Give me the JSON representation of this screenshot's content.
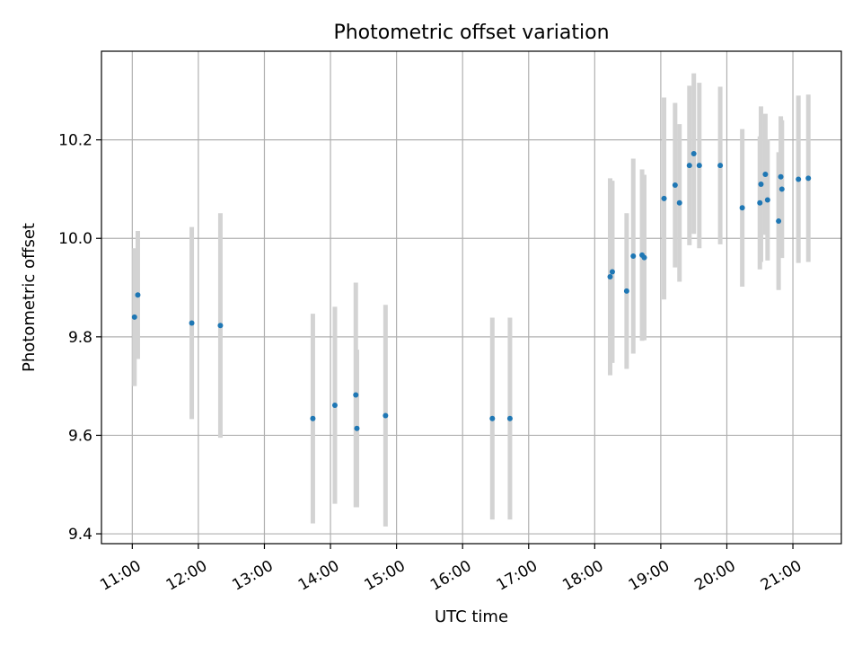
{
  "chart_data": {
    "type": "scatter",
    "title": "Photometric offset variation",
    "xlabel": "UTC time",
    "ylabel": "Photometric offset",
    "grid": true,
    "x_ticks": [
      "11:00",
      "12:00",
      "13:00",
      "14:00",
      "15:00",
      "16:00",
      "17:00",
      "18:00",
      "19:00",
      "20:00",
      "21:00"
    ],
    "y_ticks": [
      9.4,
      9.6,
      9.8,
      10.0,
      10.2
    ],
    "xlim": [
      "10:32",
      "21:44"
    ],
    "ylim": [
      9.38,
      10.38
    ],
    "colors": {
      "points": "#1f77b4",
      "errorbars": "#d3d3d3",
      "grid": "#b0b0b0"
    },
    "points": [
      {
        "t": "11:02",
        "y": 9.84,
        "err": 0.14
      },
      {
        "t": "11:05",
        "y": 9.885,
        "err": 0.13
      },
      {
        "t": "11:54",
        "y": 9.828,
        "err": 0.195
      },
      {
        "t": "12:20",
        "y": 9.823,
        "err": 0.228
      },
      {
        "t": "13:44",
        "y": 9.634,
        "err": 0.213
      },
      {
        "t": "14:04",
        "y": 9.661,
        "err": 0.2
      },
      {
        "t": "14:23",
        "y": 9.682,
        "err": 0.228
      },
      {
        "t": "14:24",
        "y": 9.614,
        "err": 0.16
      },
      {
        "t": "14:50",
        "y": 9.64,
        "err": 0.225
      },
      {
        "t": "16:27",
        "y": 9.634,
        "err": 0.205
      },
      {
        "t": "16:43",
        "y": 9.634,
        "err": 0.205
      },
      {
        "t": "18:14",
        "y": 9.922,
        "err": 0.2
      },
      {
        "t": "18:16",
        "y": 9.932,
        "err": 0.185
      },
      {
        "t": "18:29",
        "y": 9.893,
        "err": 0.158
      },
      {
        "t": "18:35",
        "y": 9.964,
        "err": 0.198
      },
      {
        "t": "18:43",
        "y": 9.966,
        "err": 0.174
      },
      {
        "t": "18:45",
        "y": 9.961,
        "err": 0.168
      },
      {
        "t": "19:03",
        "y": 10.081,
        "err": 0.205
      },
      {
        "t": "19:13",
        "y": 10.108,
        "err": 0.167
      },
      {
        "t": "19:17",
        "y": 10.072,
        "err": 0.16
      },
      {
        "t": "19:26",
        "y": 10.148,
        "err": 0.162
      },
      {
        "t": "19:30",
        "y": 10.172,
        "err": 0.163
      },
      {
        "t": "19:35",
        "y": 10.148,
        "err": 0.168
      },
      {
        "t": "19:54",
        "y": 10.148,
        "err": 0.16
      },
      {
        "t": "20:14",
        "y": 10.062,
        "err": 0.16
      },
      {
        "t": "20:30",
        "y": 10.072,
        "err": 0.135
      },
      {
        "t": "20:31",
        "y": 10.11,
        "err": 0.158
      },
      {
        "t": "20:35",
        "y": 10.13,
        "err": 0.123
      },
      {
        "t": "20:37",
        "y": 10.078,
        "err": 0.123
      },
      {
        "t": "20:47",
        "y": 10.035,
        "err": 0.14
      },
      {
        "t": "20:49",
        "y": 10.125,
        "err": 0.123
      },
      {
        "t": "20:50",
        "y": 10.1,
        "err": 0.14
      },
      {
        "t": "21:05",
        "y": 10.12,
        "err": 0.17
      },
      {
        "t": "21:14",
        "y": 10.122,
        "err": 0.17
      }
    ]
  }
}
